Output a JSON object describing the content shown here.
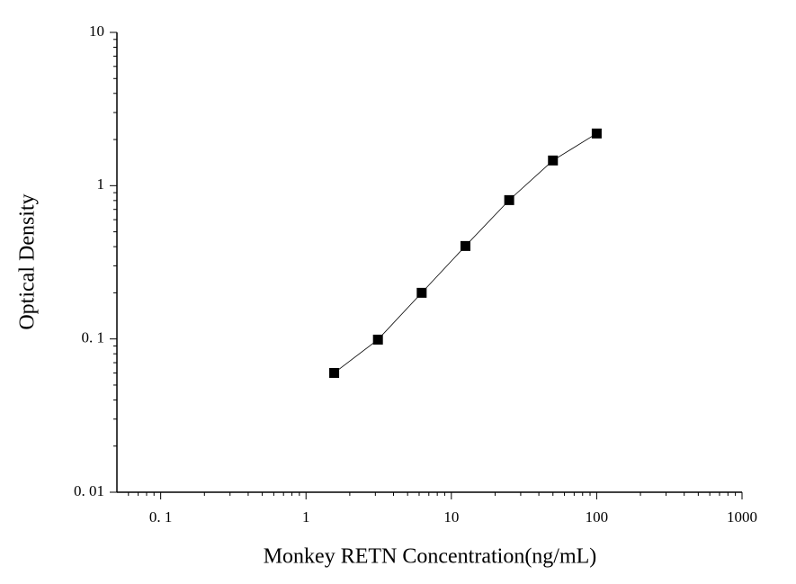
{
  "chart_data": {
    "type": "line",
    "x_label": "Monkey RETN Concentration(ng/mL)",
    "y_label": "Optical Density",
    "x": [
      1.5625,
      3.125,
      6.25,
      12.5,
      25,
      50,
      100
    ],
    "series": [
      {
        "color": "#000000",
        "values": [
          0.06,
          0.099,
          0.2,
          0.404,
          0.805,
          1.46,
          2.19
        ]
      }
    ],
    "marker": "square",
    "x_log": true,
    "y_log": true,
    "xlim": [
      0.05,
      1000
    ],
    "ylim": [
      0.01,
      10
    ],
    "xticks": [
      {
        "value": 0.1,
        "label": "0. 1"
      },
      1,
      10,
      100,
      1000
    ],
    "yticks": [
      {
        "value": 0.01,
        "label": "0. 01"
      },
      {
        "value": 0.1,
        "label": "0. 1"
      },
      1,
      10
    ],
    "minor_ticks": true
  }
}
